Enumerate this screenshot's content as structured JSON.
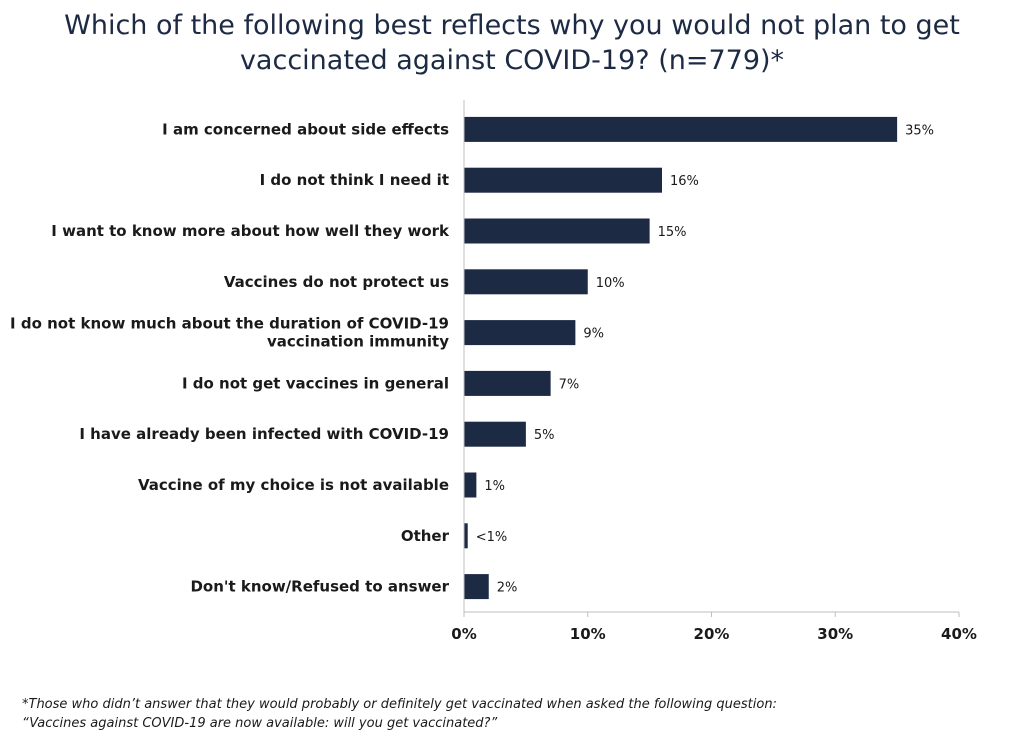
{
  "title": {
    "line1": "Which of the following best reflects why you would not plan to get",
    "line2": "vaccinated against COVID-19? (n=779)*"
  },
  "chart_data": {
    "type": "bar",
    "orientation": "horizontal",
    "categories": [
      [
        "I am concerned about side effects"
      ],
      [
        "I do not think I need it"
      ],
      [
        "I want to know more about how well they work"
      ],
      [
        "Vaccines do not protect us"
      ],
      [
        "I do not know much about the duration of COVID-19",
        "vaccination immunity"
      ],
      [
        "I do not get vaccines in general"
      ],
      [
        "I have already been infected with COVID-19"
      ],
      [
        "Vaccine of my choice is not available"
      ],
      [
        "Other"
      ],
      [
        "Don't know/Refused to answer"
      ]
    ],
    "values": [
      35,
      16,
      15,
      10,
      9,
      7,
      5,
      1,
      0.3,
      2
    ],
    "value_labels": [
      "35%",
      "16%",
      "15%",
      "10%",
      "9%",
      "7%",
      "5%",
      "1%",
      "<1%",
      "2%"
    ],
    "xlim": [
      0,
      40
    ],
    "xticks": [
      0,
      10,
      20,
      30,
      40
    ],
    "xtick_labels": [
      "0%",
      "10%",
      "20%",
      "30%",
      "40%"
    ],
    "grid": false,
    "bar_color": "#1c2a44"
  },
  "footnote": {
    "line1": "*Those who didn’t answer that they would probably or definitely get vaccinated when asked the following question:",
    "line2": "“Vaccines against COVID-19 are now available: will you get vaccinated?”"
  }
}
